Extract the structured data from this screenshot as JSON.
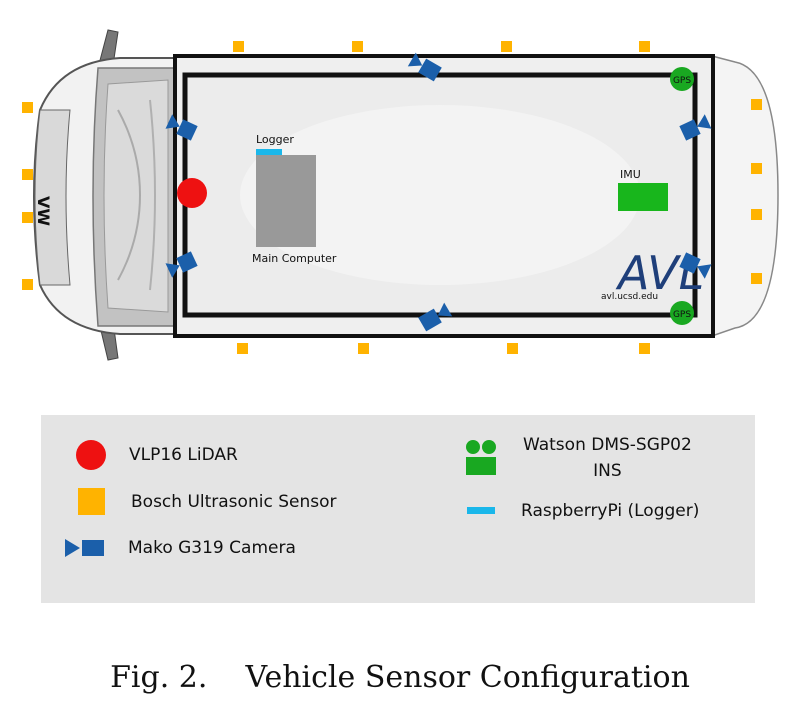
{
  "colors": {
    "lidar": "#ee1111",
    "ultrasonic": "#ffb300",
    "camera": "#1b5faa",
    "gps": "#19a821",
    "imu": "#18b61c",
    "logger": "#1ab7ea",
    "computer": "#999999",
    "legend_bg": "#e4e4e4"
  },
  "diagram": {
    "logger_label": "Logger",
    "computer_label": "Main Computer",
    "imu_label": "IMU",
    "gps_front_label": "GPS",
    "gps_rear_label": "GPS",
    "logo_text": "AVL",
    "logo_url": "avl.ucsd.edu",
    "front_badge": "VW"
  },
  "legend": {
    "lidar": "VLP16 LiDAR",
    "ultrasonic": "Bosch Ultrasonic Sensor",
    "camera": "Mako G319 Camera",
    "ins_line1": "Watson DMS-SGP02",
    "ins_line2": "INS",
    "logger": "RaspberryPi (Logger)"
  },
  "caption": {
    "fig": "Fig. 2.",
    "title": "Vehicle Sensor Configuration"
  }
}
